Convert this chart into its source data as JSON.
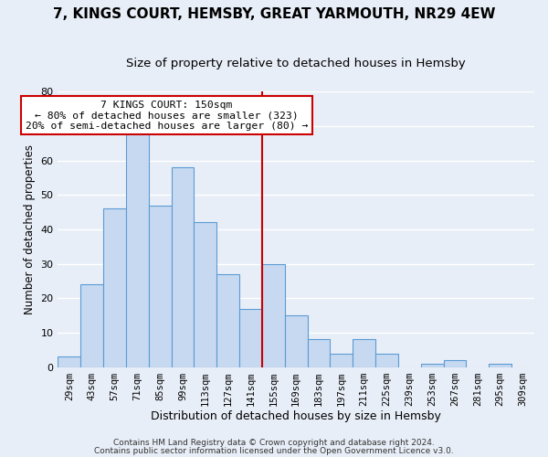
{
  "title": "7, KINGS COURT, HEMSBY, GREAT YARMOUTH, NR29 4EW",
  "subtitle": "Size of property relative to detached houses in Hemsby",
  "xlabel": "Distribution of detached houses by size in Hemsby",
  "ylabel": "Number of detached properties",
  "bar_labels": [
    "29sqm",
    "43sqm",
    "57sqm",
    "71sqm",
    "85sqm",
    "99sqm",
    "113sqm",
    "127sqm",
    "141sqm",
    "155sqm",
    "169sqm",
    "183sqm",
    "197sqm",
    "211sqm",
    "225sqm",
    "239sqm",
    "253sqm",
    "267sqm",
    "281sqm",
    "295sqm",
    "309sqm"
  ],
  "bar_values": [
    3,
    24,
    46,
    68,
    47,
    58,
    42,
    27,
    17,
    30,
    15,
    8,
    4,
    8,
    4,
    0,
    1,
    2,
    0,
    1,
    0
  ],
  "bar_color": "#c6d9f0",
  "bar_edge_color": "#5b9bd5",
  "vline_color": "#cc0000",
  "annotation_text": "7 KINGS COURT: 150sqm\n← 80% of detached houses are smaller (323)\n20% of semi-detached houses are larger (80) →",
  "annotation_box_edge": "#cc0000",
  "ylim": [
    0,
    80
  ],
  "yticks": [
    0,
    10,
    20,
    30,
    40,
    50,
    60,
    70,
    80
  ],
  "footer1": "Contains HM Land Registry data © Crown copyright and database right 2024.",
  "footer2": "Contains public sector information licensed under the Open Government Licence v3.0.",
  "bg_color": "#e8eef7",
  "title_fontsize": 11,
  "subtitle_fontsize": 9.5,
  "ylabel_fontsize": 8.5,
  "xlabel_fontsize": 9,
  "tick_fontsize": 7.5,
  "footer_fontsize": 6.5,
  "ann_fontsize": 8.2,
  "vline_index": 8.5
}
